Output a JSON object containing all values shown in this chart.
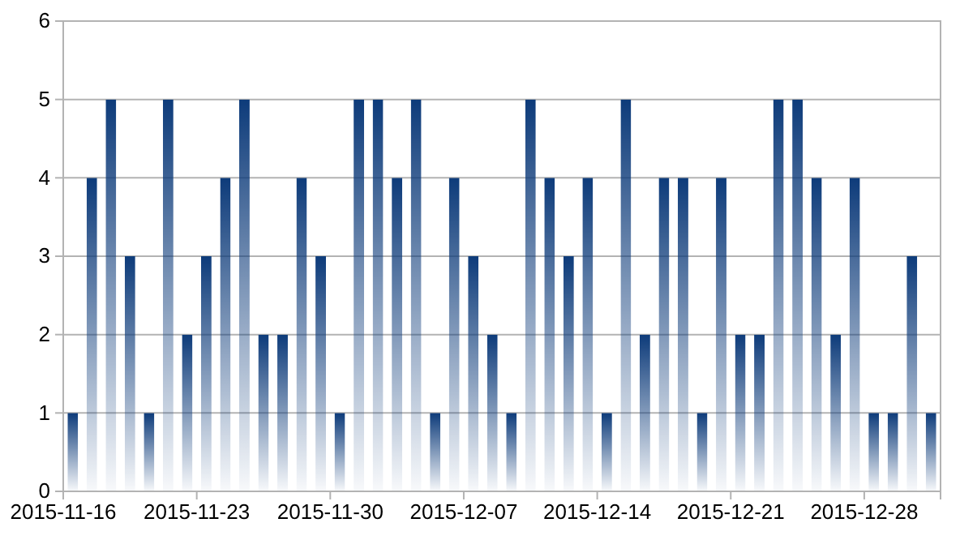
{
  "chart_data": {
    "type": "bar",
    "x": [
      "2015-11-16T12:00",
      "2015-11-17T12:00",
      "2015-11-18T12:00",
      "2015-11-19T12:00",
      "2015-11-20T12:00",
      "2015-11-21T12:00",
      "2015-11-22T12:00",
      "2015-11-23T12:00",
      "2015-11-24T12:00",
      "2015-11-25T12:00",
      "2015-11-26T12:00",
      "2015-11-27T12:00",
      "2015-11-28T12:00",
      "2015-11-29T12:00",
      "2015-11-30T12:00",
      "2015-12-01T12:00",
      "2015-12-02T12:00",
      "2015-12-03T12:00",
      "2015-12-04T12:00",
      "2015-12-05T12:00",
      "2015-12-06T12:00",
      "2015-12-07T12:00",
      "2015-12-08T12:00",
      "2015-12-09T12:00",
      "2015-12-10T12:00",
      "2015-12-11T12:00",
      "2015-12-12T12:00",
      "2015-12-13T12:00",
      "2015-12-14T12:00",
      "2015-12-15T12:00",
      "2015-12-16T12:00",
      "2015-12-17T12:00",
      "2015-12-18T12:00",
      "2015-12-19T12:00",
      "2015-12-20T12:00",
      "2015-12-21T12:00",
      "2015-12-22T12:00",
      "2015-12-23T12:00",
      "2015-12-24T12:00",
      "2015-12-25T12:00",
      "2015-12-26T12:00",
      "2015-12-27T12:00",
      "2015-12-28T12:00",
      "2015-12-29T12:00",
      "2015-12-30T12:00",
      "2015-12-31T12:00"
    ],
    "values": [
      1,
      4,
      5,
      3,
      1,
      5,
      2,
      3,
      4,
      5,
      2,
      2,
      4,
      3,
      1,
      5,
      5,
      4,
      5,
      1,
      4,
      3,
      2,
      1,
      5,
      4,
      3,
      4,
      1,
      5,
      2,
      4,
      4,
      1,
      4,
      2,
      2,
      5,
      5,
      4,
      2,
      4,
      1,
      1,
      3,
      1
    ],
    "color": "#0d3b7a",
    "xlim": [
      "2015-11-16",
      "2016-01-01"
    ],
    "xticks": [
      "2015-11-16",
      "2015-11-23",
      "2015-11-30",
      "2015-12-07",
      "2015-12-14",
      "2015-12-21",
      "2015-12-28"
    ],
    "ylim": [
      0,
      6
    ],
    "yticks": [
      0,
      1,
      2,
      3,
      4,
      5,
      6
    ],
    "grid": "y"
  }
}
